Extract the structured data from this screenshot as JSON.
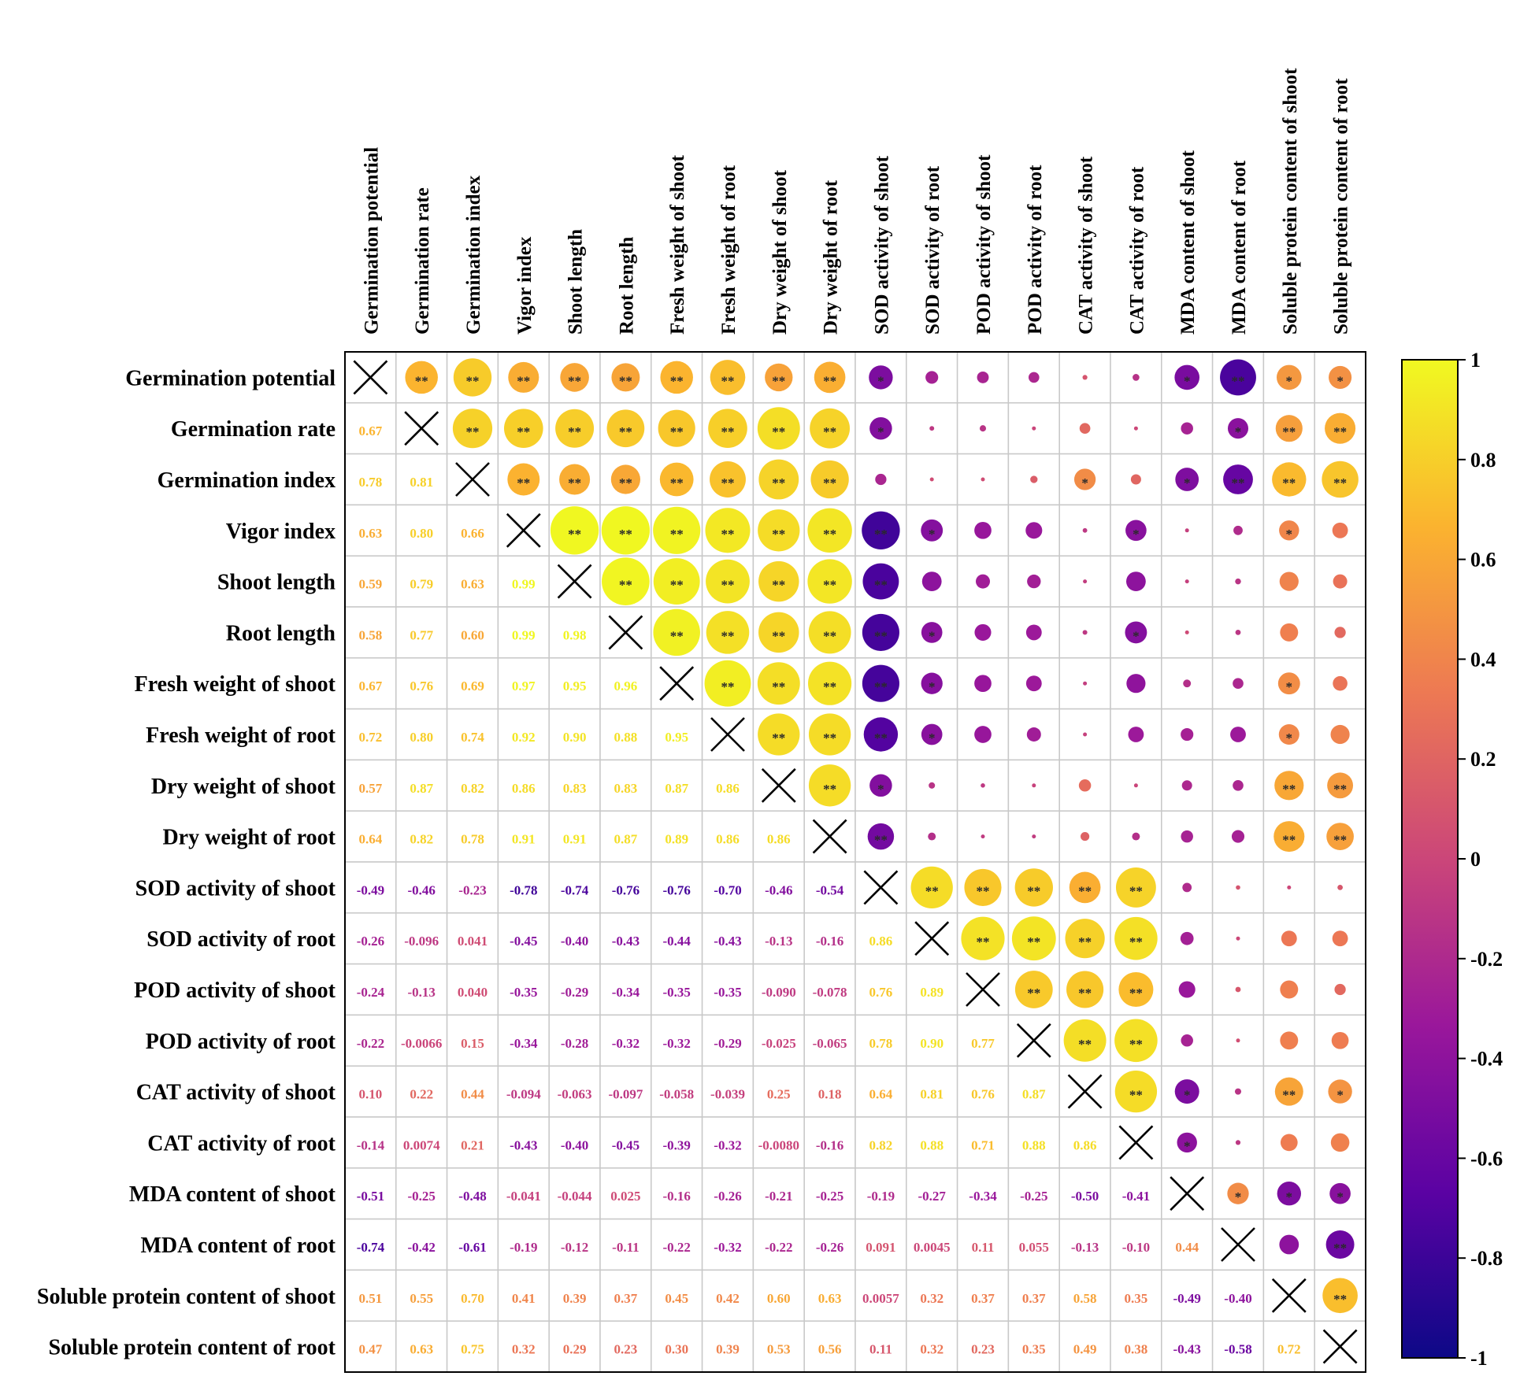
{
  "chart_data": {
    "type": "heatmap",
    "title": "",
    "variables": [
      "Germination potential",
      "Germination rate",
      "Germination index",
      "Vigor index",
      "Shoot length",
      "Root length",
      "Fresh weight of shoot",
      "Fresh weight of root",
      "Dry weight of shoot",
      "Dry weight of root",
      "SOD activity of shoot",
      "SOD activity of root",
      "POD activity of shoot",
      "POD activity of root",
      "CAT activity of shoot",
      "CAT activity of root",
      "MDA content of shoot",
      "MDA content of root",
      "Soluble protein content of shoot",
      "Soluble protein content of root"
    ],
    "lower_triangle_labels": [
      [],
      [
        "0.67"
      ],
      [
        "0.78",
        "0.81"
      ],
      [
        "0.63",
        "0.80",
        "0.66"
      ],
      [
        "0.59",
        "0.79",
        "0.63",
        "0.99"
      ],
      [
        "0.58",
        "0.77",
        "0.60",
        "0.99",
        "0.98"
      ],
      [
        "0.67",
        "0.76",
        "0.69",
        "0.97",
        "0.95",
        "0.96"
      ],
      [
        "0.72",
        "0.80",
        "0.74",
        "0.92",
        "0.90",
        "0.88",
        "0.95"
      ],
      [
        "0.57",
        "0.87",
        "0.82",
        "0.86",
        "0.83",
        "0.83",
        "0.87",
        "0.86"
      ],
      [
        "0.64",
        "0.82",
        "0.78",
        "0.91",
        "0.91",
        "0.87",
        "0.89",
        "0.86",
        "0.86"
      ],
      [
        "-0.49",
        "-0.46",
        "-0.23",
        "-0.78",
        "-0.74",
        "-0.76",
        "-0.76",
        "-0.70",
        "-0.46",
        "-0.54"
      ],
      [
        "-0.26",
        "-0.096",
        "0.041",
        "-0.45",
        "-0.40",
        "-0.43",
        "-0.44",
        "-0.43",
        "-0.13",
        "-0.16",
        "0.86"
      ],
      [
        "-0.24",
        "-0.13",
        "0.040",
        "-0.35",
        "-0.29",
        "-0.34",
        "-0.35",
        "-0.35",
        "-0.090",
        "-0.078",
        "0.76",
        "0.89"
      ],
      [
        "-0.22",
        "-0.0066",
        "0.15",
        "-0.34",
        "-0.28",
        "-0.32",
        "-0.32",
        "-0.29",
        "-0.025",
        "-0.065",
        "0.78",
        "0.90",
        "0.77"
      ],
      [
        "0.10",
        "0.22",
        "0.44",
        "-0.094",
        "-0.063",
        "-0.097",
        "-0.058",
        "-0.039",
        "0.25",
        "0.18",
        "0.64",
        "0.81",
        "0.76",
        "0.87"
      ],
      [
        "-0.14",
        "0.0074",
        "0.21",
        "-0.43",
        "-0.40",
        "-0.45",
        "-0.39",
        "-0.32",
        "-0.0080",
        "-0.16",
        "0.82",
        "0.88",
        "0.71",
        "0.88",
        "0.86"
      ],
      [
        "-0.51",
        "-0.25",
        "-0.48",
        "-0.041",
        "-0.044",
        "0.025",
        "-0.16",
        "-0.26",
        "-0.21",
        "-0.25",
        "-0.19",
        "-0.27",
        "-0.34",
        "-0.25",
        "-0.50",
        "-0.41"
      ],
      [
        "-0.74",
        "-0.42",
        "-0.61",
        "-0.19",
        "-0.12",
        "-0.11",
        "-0.22",
        "-0.32",
        "-0.22",
        "-0.26",
        "0.091",
        "0.0045",
        "0.11",
        "0.055",
        "-0.13",
        "-0.10",
        "0.44"
      ],
      [
        "0.51",
        "0.55",
        "0.70",
        "0.41",
        "0.39",
        "0.37",
        "0.45",
        "0.42",
        "0.60",
        "0.63",
        "0.0057",
        "0.32",
        "0.37",
        "0.37",
        "0.58",
        "0.35",
        "-0.49",
        "-0.40"
      ],
      [
        "0.47",
        "0.63",
        "0.75",
        "0.32",
        "0.29",
        "0.23",
        "0.30",
        "0.39",
        "0.53",
        "0.56",
        "0.11",
        "0.32",
        "0.23",
        "0.35",
        "0.49",
        "0.38",
        "-0.43",
        "-0.58",
        "0.72"
      ]
    ],
    "significance_upper": [
      [
        "",
        "**",
        "**",
        "**",
        "**",
        "**",
        "**",
        "**",
        "**",
        "**",
        "*",
        "",
        "",
        "",
        "",
        "",
        "*",
        "**",
        "*",
        "*"
      ],
      [
        "",
        "",
        "**",
        "**",
        "**",
        "**",
        "**",
        "**",
        "**",
        "**",
        "*",
        "",
        "",
        "",
        "",
        "",
        "",
        "*",
        "**",
        "**"
      ],
      [
        "",
        "",
        "",
        "**",
        "**",
        "**",
        "**",
        "**",
        "**",
        "**",
        "",
        "",
        "",
        "",
        "*",
        "",
        "*",
        "**",
        "**",
        "**"
      ],
      [
        "",
        "",
        "",
        "",
        "**",
        "**",
        "**",
        "**",
        "**",
        "**",
        "**",
        "*",
        "",
        "",
        "",
        "*",
        "",
        "",
        "*",
        ""
      ],
      [
        "",
        "",
        "",
        "",
        "",
        "**",
        "**",
        "**",
        "**",
        "**",
        "**",
        "",
        "",
        "",
        "",
        "",
        "",
        "",
        "",
        ""
      ],
      [
        "",
        "",
        "",
        "",
        "",
        "",
        "**",
        "**",
        "**",
        "**",
        "**",
        "*",
        "",
        "",
        "",
        "*",
        "",
        "",
        "",
        ""
      ],
      [
        "",
        "",
        "",
        "",
        "",
        "",
        "",
        "**",
        "**",
        "**",
        "**",
        "*",
        "",
        "",
        "",
        "",
        "",
        "",
        "*",
        ""
      ],
      [
        "",
        "",
        "",
        "",
        "",
        "",
        "",
        "",
        "**",
        "**",
        "**",
        "*",
        "",
        "",
        "",
        "",
        "",
        "",
        "*",
        ""
      ],
      [
        "",
        "",
        "",
        "",
        "",
        "",
        "",
        "",
        "",
        "**",
        "*",
        "",
        "",
        "",
        "",
        "",
        "",
        "",
        "**",
        "**"
      ],
      [
        "",
        "",
        "",
        "",
        "",
        "",
        "",
        "",
        "",
        "",
        "**",
        "",
        "",
        "",
        "",
        "",
        "",
        "",
        "**",
        "**"
      ],
      [
        "",
        "",
        "",
        "",
        "",
        "",
        "",
        "",
        "",
        "",
        "",
        "**",
        "**",
        "**",
        "**",
        "**",
        "",
        "",
        "",
        ""
      ],
      [
        "",
        "",
        "",
        "",
        "",
        "",
        "",
        "",
        "",
        "",
        "",
        "",
        "**",
        "**",
        "**",
        "**",
        "",
        "",
        "",
        ""
      ],
      [
        "",
        "",
        "",
        "",
        "",
        "",
        "",
        "",
        "",
        "",
        "",
        "",
        "",
        "**",
        "**",
        "**",
        "",
        "",
        "",
        ""
      ],
      [
        "",
        "",
        "",
        "",
        "",
        "",
        "",
        "",
        "",
        "",
        "",
        "",
        "",
        "",
        "**",
        "**",
        "",
        "",
        "",
        ""
      ],
      [
        "",
        "",
        "",
        "",
        "",
        "",
        "",
        "",
        "",
        "",
        "",
        "",
        "",
        "",
        "",
        "**",
        "*",
        "",
        "**",
        "*"
      ],
      [
        "",
        "",
        "",
        "",
        "",
        "",
        "",
        "",
        "",
        "",
        "",
        "",
        "",
        "",
        "",
        "",
        "*",
        "",
        "",
        ""
      ],
      [
        "",
        "",
        "",
        "",
        "",
        "",
        "",
        "",
        "",
        "",
        "",
        "",
        "",
        "",
        "",
        "",
        "",
        "*",
        "*",
        "*"
      ],
      [
        "",
        "",
        "",
        "",
        "",
        "",
        "",
        "",
        "",
        "",
        "",
        "",
        "",
        "",
        "",
        "",
        "",
        "",
        "",
        "**"
      ],
      [
        "",
        "",
        "",
        "",
        "",
        "",
        "",
        "",
        "",
        "",
        "",
        "",
        "",
        "",
        "",
        "",
        "",
        "",
        "",
        "**"
      ],
      [
        "",
        "",
        "",
        "",
        "",
        "",
        "",
        "",
        "",
        "",
        "",
        "",
        "",
        "",
        "",
        "",
        "",
        "",
        "",
        ""
      ]
    ],
    "colorbar": {
      "range": [
        -1,
        1
      ],
      "ticks": [
        "1",
        "0.8",
        "0.6",
        "0.4",
        "0.2",
        "0",
        "-0.2",
        "-0.4",
        "-0.6",
        "-0.8",
        "-1"
      ],
      "colors": [
        "#0d0887",
        "#5b02a3",
        "#9a179b",
        "#cb4679",
        "#ed7953",
        "#fbb32f",
        "#f0f921"
      ]
    }
  }
}
